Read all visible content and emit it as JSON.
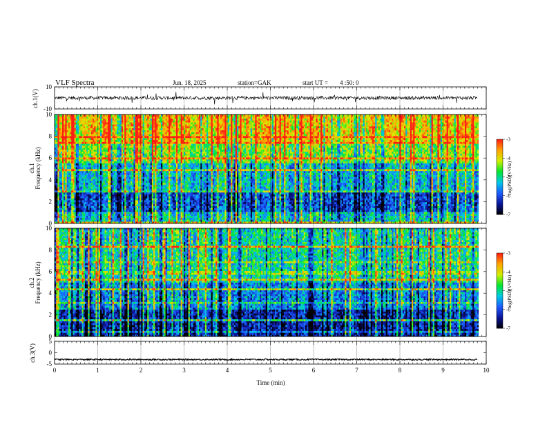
{
  "header": {
    "title": "VLF Spectra",
    "date": "Jun. 18, 2025",
    "station": "station=GAK",
    "start": "start UT =",
    "start_time": "4 :50: 0"
  },
  "colors": {
    "waveform": "#000000",
    "colormap": [
      "#000000",
      "#0a1496",
      "#1e5aff",
      "#00c8e6",
      "#00e632",
      "#d2f000",
      "#ffa500",
      "#ff1e14",
      "#ffffff"
    ]
  },
  "chart_data": [
    {
      "type": "line",
      "name": "ch1-waveform",
      "ylabel": "ch.1(V)",
      "ylim": [
        -10,
        10
      ],
      "yticks": [
        "10",
        "-10"
      ],
      "xlim": [
        0,
        10
      ],
      "note_values": "dense broadband waveform, typical amplitude about +/-1.5 V with spikes to about +/-6 V"
    },
    {
      "type": "heatmap",
      "name": "ch1-spectrogram",
      "ylabel_top": "ch.1",
      "ylabel": "Frequency (kHz)",
      "ylim": [
        0,
        10
      ],
      "yticks": [
        "0",
        "2",
        "4",
        "6",
        "8",
        "10"
      ],
      "xlim": [
        0,
        10
      ],
      "data_extent_min": [
        0,
        9.8
      ],
      "colorbar": {
        "label": "log(PSD)(V²/Hz)",
        "range": [
          -7,
          -3
        ],
        "ticks": [
          "-3",
          "-4",
          "-5",
          "-6",
          "-7"
        ]
      },
      "bands_khz": [
        {
          "from": 0,
          "to": 1,
          "level": -5.2
        },
        {
          "from": 1,
          "to": 3,
          "level": -6.0
        },
        {
          "from": 3,
          "to": 5.5,
          "level": -5.3
        },
        {
          "from": 5.5,
          "to": 7.5,
          "level": -4.4
        },
        {
          "from": 7.5,
          "to": 10,
          "level": -3.8
        }
      ]
    },
    {
      "type": "heatmap",
      "name": "ch2-spectrogram",
      "ylabel_top": "ch.2",
      "ylabel": "Frequency (kHz)",
      "ylim": [
        0,
        10
      ],
      "yticks": [
        "0",
        "2",
        "4",
        "6",
        "8",
        "10"
      ],
      "xlim": [
        0,
        10
      ],
      "data_extent_min": [
        0,
        9.8
      ],
      "colorbar": {
        "label": "log(PSD)(V²/Hz)",
        "range": [
          -7,
          -3
        ],
        "ticks": [
          "-3",
          "-4",
          "-5",
          "-6",
          "-7"
        ]
      },
      "bands_khz": [
        {
          "from": 0,
          "to": 2.5,
          "level": -6.3
        },
        {
          "from": 2.5,
          "to": 5,
          "level": -5.6
        },
        {
          "from": 5,
          "to": 10,
          "level": -5.0
        }
      ]
    },
    {
      "type": "line",
      "name": "ch3-waveform",
      "ylabel": "ch.3(V)",
      "ylim": [
        -5,
        5
      ],
      "yticks": [
        "5",
        "0",
        "-5"
      ],
      "xlim": [
        0,
        10
      ],
      "note_values": "near-constant trace at about -3 V with small ripple"
    }
  ],
  "xaxis": {
    "label": "Time (min)",
    "ticks": [
      "0",
      "1",
      "2",
      "3",
      "4",
      "5",
      "6",
      "7",
      "8",
      "9",
      "10"
    ]
  }
}
